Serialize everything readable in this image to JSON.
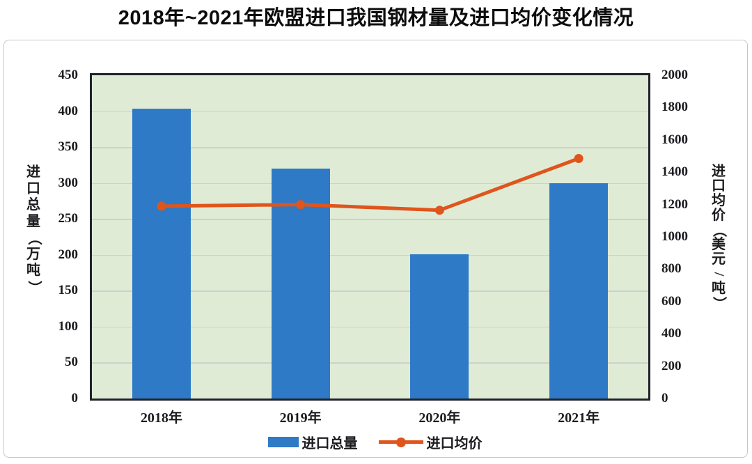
{
  "chart_data": {
    "type": "bar",
    "combo": "bar+line dual-axis",
    "title": "2018年~2021年欧盟进口我国钢材量及进口均价变化情况",
    "categories": [
      "2018年",
      "2019年",
      "2020年",
      "2021年"
    ],
    "series": [
      {
        "name": "进口总量",
        "type": "bar",
        "axis": "left",
        "unit": "万吨",
        "color": "#2e7ac7",
        "values": [
          403,
          320,
          201,
          300
        ]
      },
      {
        "name": "进口均价",
        "type": "line",
        "axis": "right",
        "unit": "美元/吨",
        "color": "#e0551b",
        "values": [
          1190,
          1200,
          1165,
          1485
        ]
      }
    ],
    "left_axis": {
      "label": "进口总量（万吨）",
      "min": 0,
      "max": 450,
      "step": 50,
      "ticks": [
        450,
        400,
        350,
        300,
        250,
        200,
        150,
        100,
        50,
        0
      ]
    },
    "right_axis": {
      "label": "进口均价（美元/吨）",
      "min": 0,
      "max": 2000,
      "step": 200,
      "ticks": [
        2000,
        1800,
        1600,
        1400,
        1200,
        1000,
        800,
        600,
        400,
        200,
        0
      ]
    },
    "grid": true,
    "legend_position": "bottom",
    "colors": {
      "plot_background": "#e0ebd6",
      "grid": "#cdd2c9",
      "plot_border": "#20222a",
      "bar": "#2e7ac7",
      "line": "#e0551b",
      "card_border": "#c7c7c7",
      "text": "#1c1c20"
    }
  }
}
